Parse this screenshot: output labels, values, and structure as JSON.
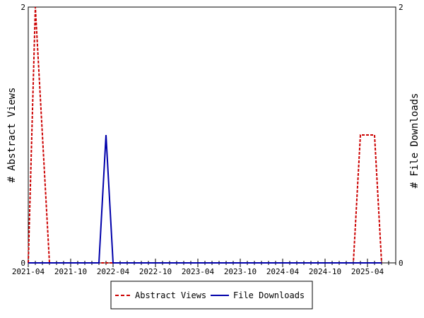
{
  "chart_data": {
    "type": "line",
    "x_tick_labels": [
      "2021-04",
      "2021-10",
      "2022-04",
      "2022-10",
      "2023-04",
      "2023-10",
      "2024-04",
      "2024-10",
      "2025-04"
    ],
    "y_left": {
      "label": "# Abstract Views",
      "ticks": [
        "0",
        "2"
      ],
      "ylim": [
        0,
        2
      ]
    },
    "y_right": {
      "label": "# File Downloads",
      "ticks": [
        "0",
        "2"
      ],
      "ylim": [
        0,
        2
      ]
    },
    "grid": false,
    "legend_position": "bottom",
    "series": [
      {
        "name": "Abstract Views",
        "axis": "left",
        "color": "#cc0000",
        "style": "dashed",
        "points": [
          [
            "2021-04",
            0
          ],
          [
            "2021-05",
            2
          ],
          [
            "2021-07",
            0
          ],
          [
            "2025-02",
            0
          ],
          [
            "2025-03",
            1
          ],
          [
            "2025-05",
            1
          ],
          [
            "2025-06",
            0
          ]
        ]
      },
      {
        "name": "File Downloads",
        "axis": "right",
        "color": "#0000aa",
        "style": "solid",
        "points": [
          [
            "2021-04",
            0
          ],
          [
            "2022-02",
            0
          ],
          [
            "2022-03",
            1
          ],
          [
            "2022-04",
            0
          ],
          [
            "2025-06",
            0
          ]
        ]
      }
    ]
  },
  "legend": {
    "items": [
      {
        "label": "Abstract Views",
        "color": "#cc0000",
        "style": "dashed"
      },
      {
        "label": "File Downloads",
        "color": "#0000aa",
        "style": "solid"
      }
    ]
  }
}
